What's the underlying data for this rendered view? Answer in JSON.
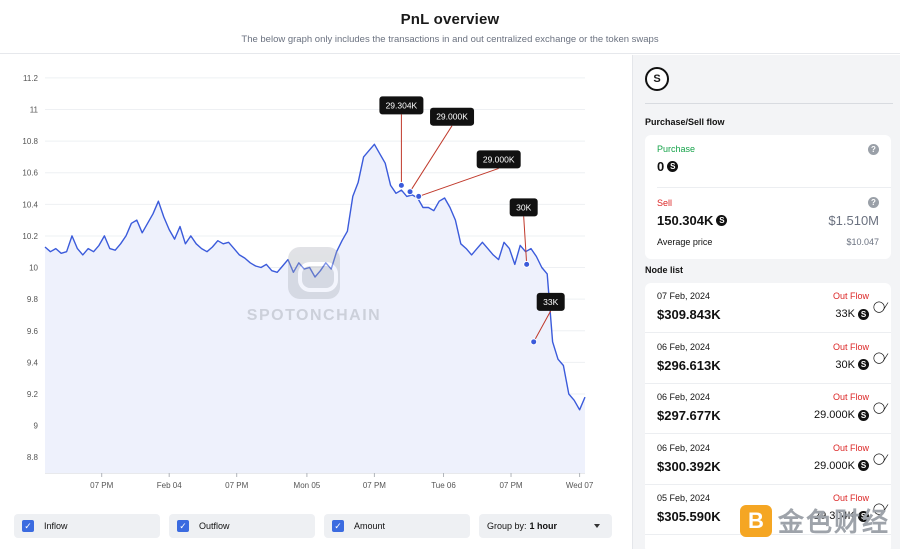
{
  "header": {
    "title": "PnL overview",
    "subtitle": "The below graph only includes the transactions in and out centralized exchange or the token swaps"
  },
  "chart_data": {
    "type": "line",
    "ylim": [
      8.7,
      11.25
    ],
    "yticks": [
      "11.2",
      "11",
      "10.8",
      "10.6",
      "10.4",
      "10.2",
      "10",
      "9.8",
      "9.6",
      "9.4",
      "9.2",
      "9",
      "8.8"
    ],
    "ytick_values": [
      11.2,
      11.0,
      10.8,
      10.6,
      10.4,
      10.2,
      10.0,
      9.8,
      9.6,
      9.4,
      9.2,
      9.0,
      8.8
    ],
    "xlim": [
      0,
      100
    ],
    "xticks": [
      "07 PM",
      "Feb 04",
      "07 PM",
      "Mon 05",
      "07 PM",
      "Tue 06",
      "07 PM",
      "Wed 07"
    ],
    "xtick_pos": [
      10.5,
      23.0,
      35.5,
      48.5,
      61.0,
      73.8,
      86.3,
      99.0
    ],
    "grid": true,
    "series": [
      {
        "color": "#3b5bdb",
        "x": [
          0,
          1,
          2,
          3,
          4,
          5,
          6,
          7,
          8,
          9,
          10,
          11,
          12,
          13,
          14,
          15,
          16,
          17,
          18,
          19,
          20,
          21,
          22,
          23,
          24,
          25,
          26,
          27,
          28,
          29,
          30,
          31,
          32,
          33,
          34,
          35,
          36,
          37,
          38,
          39,
          40,
          41,
          42,
          43,
          44,
          45,
          46,
          47,
          48,
          49,
          50,
          51,
          52,
          53,
          54,
          55,
          56,
          57,
          58,
          59,
          60,
          61,
          62,
          63,
          64,
          65,
          66,
          67,
          68,
          69,
          70,
          71,
          72,
          73,
          74,
          75,
          76,
          77,
          78,
          79,
          80,
          81,
          82,
          83,
          84,
          85,
          86,
          87,
          88,
          89,
          90,
          91,
          92,
          93,
          94,
          95,
          96,
          97,
          98,
          99,
          100
        ],
        "y": [
          10.13,
          10.1,
          10.12,
          10.09,
          10.1,
          10.2,
          10.12,
          10.08,
          10.12,
          10.1,
          10.14,
          10.2,
          10.12,
          10.11,
          10.15,
          10.2,
          10.28,
          10.3,
          10.22,
          10.28,
          10.34,
          10.42,
          10.32,
          10.24,
          10.18,
          10.26,
          10.15,
          10.2,
          10.15,
          10.12,
          10.1,
          10.13,
          10.17,
          10.15,
          10.16,
          10.12,
          10.08,
          10.06,
          10.03,
          10.01,
          10.0,
          10.02,
          9.98,
          9.97,
          10.01,
          10.05,
          9.97,
          10.03,
          9.99,
          10.0,
          9.94,
          9.98,
          10.03,
          9.99,
          10.1,
          10.17,
          10.23,
          10.45,
          10.54,
          10.7,
          10.74,
          10.78,
          10.72,
          10.66,
          10.52,
          10.47,
          10.49,
          10.45,
          10.46,
          10.44,
          10.38,
          10.38,
          10.36,
          10.42,
          10.44,
          10.38,
          10.3,
          10.15,
          10.12,
          10.08,
          10.12,
          10.16,
          10.12,
          10.08,
          10.05,
          10.16,
          10.12,
          10.02,
          10.14,
          10.1,
          10.12,
          10.07,
          10.0,
          9.96,
          9.53,
          9.42,
          9.38,
          9.2,
          9.16,
          9.1,
          9.18
        ]
      }
    ],
    "annotations": [
      {
        "label": "29.304K",
        "x": 66.0,
        "y": 10.52
      },
      {
        "label": "29.000K",
        "x": 67.6,
        "y": 10.48
      },
      {
        "label": "29.000K",
        "x": 69.2,
        "y": 10.45
      },
      {
        "label": "30K",
        "x": 89.2,
        "y": 10.02
      },
      {
        "label": "33K",
        "x": 90.5,
        "y": 9.53
      }
    ]
  },
  "watermark": "SPOTONCHAIN",
  "filters": {
    "inflow": "Inflow",
    "outflow": "Outflow",
    "amount": "Amount",
    "group_label": "Group by:",
    "group_value": "1 hour"
  },
  "sidebar": {
    "token_icon": "S",
    "flow_title": "Purchase/Sell flow",
    "purchase_label": "Purchase",
    "purchase_value": "0",
    "sell_label": "Sell",
    "sell_value": "150.304K",
    "sell_usd": "$1.510M",
    "avg_label": "Average price",
    "avg_value": "$10.047",
    "node_title": "Node list",
    "nodes": [
      {
        "date": "07 Feb, 2024",
        "flow": "Out Flow",
        "usd": "$309.843K",
        "amount": "33K"
      },
      {
        "date": "06 Feb, 2024",
        "flow": "Out Flow",
        "usd": "$296.613K",
        "amount": "30K"
      },
      {
        "date": "06 Feb, 2024",
        "flow": "Out Flow",
        "usd": "$297.677K",
        "amount": "29.000K"
      },
      {
        "date": "06 Feb, 2024",
        "flow": "Out Flow",
        "usd": "$300.392K",
        "amount": "29.000K"
      },
      {
        "date": "05 Feb, 2024",
        "flow": "Out Flow",
        "usd": "$305.590K",
        "amount": "29.304K"
      }
    ]
  },
  "corner_logo": {
    "mark": "B",
    "text": "金色财经"
  }
}
